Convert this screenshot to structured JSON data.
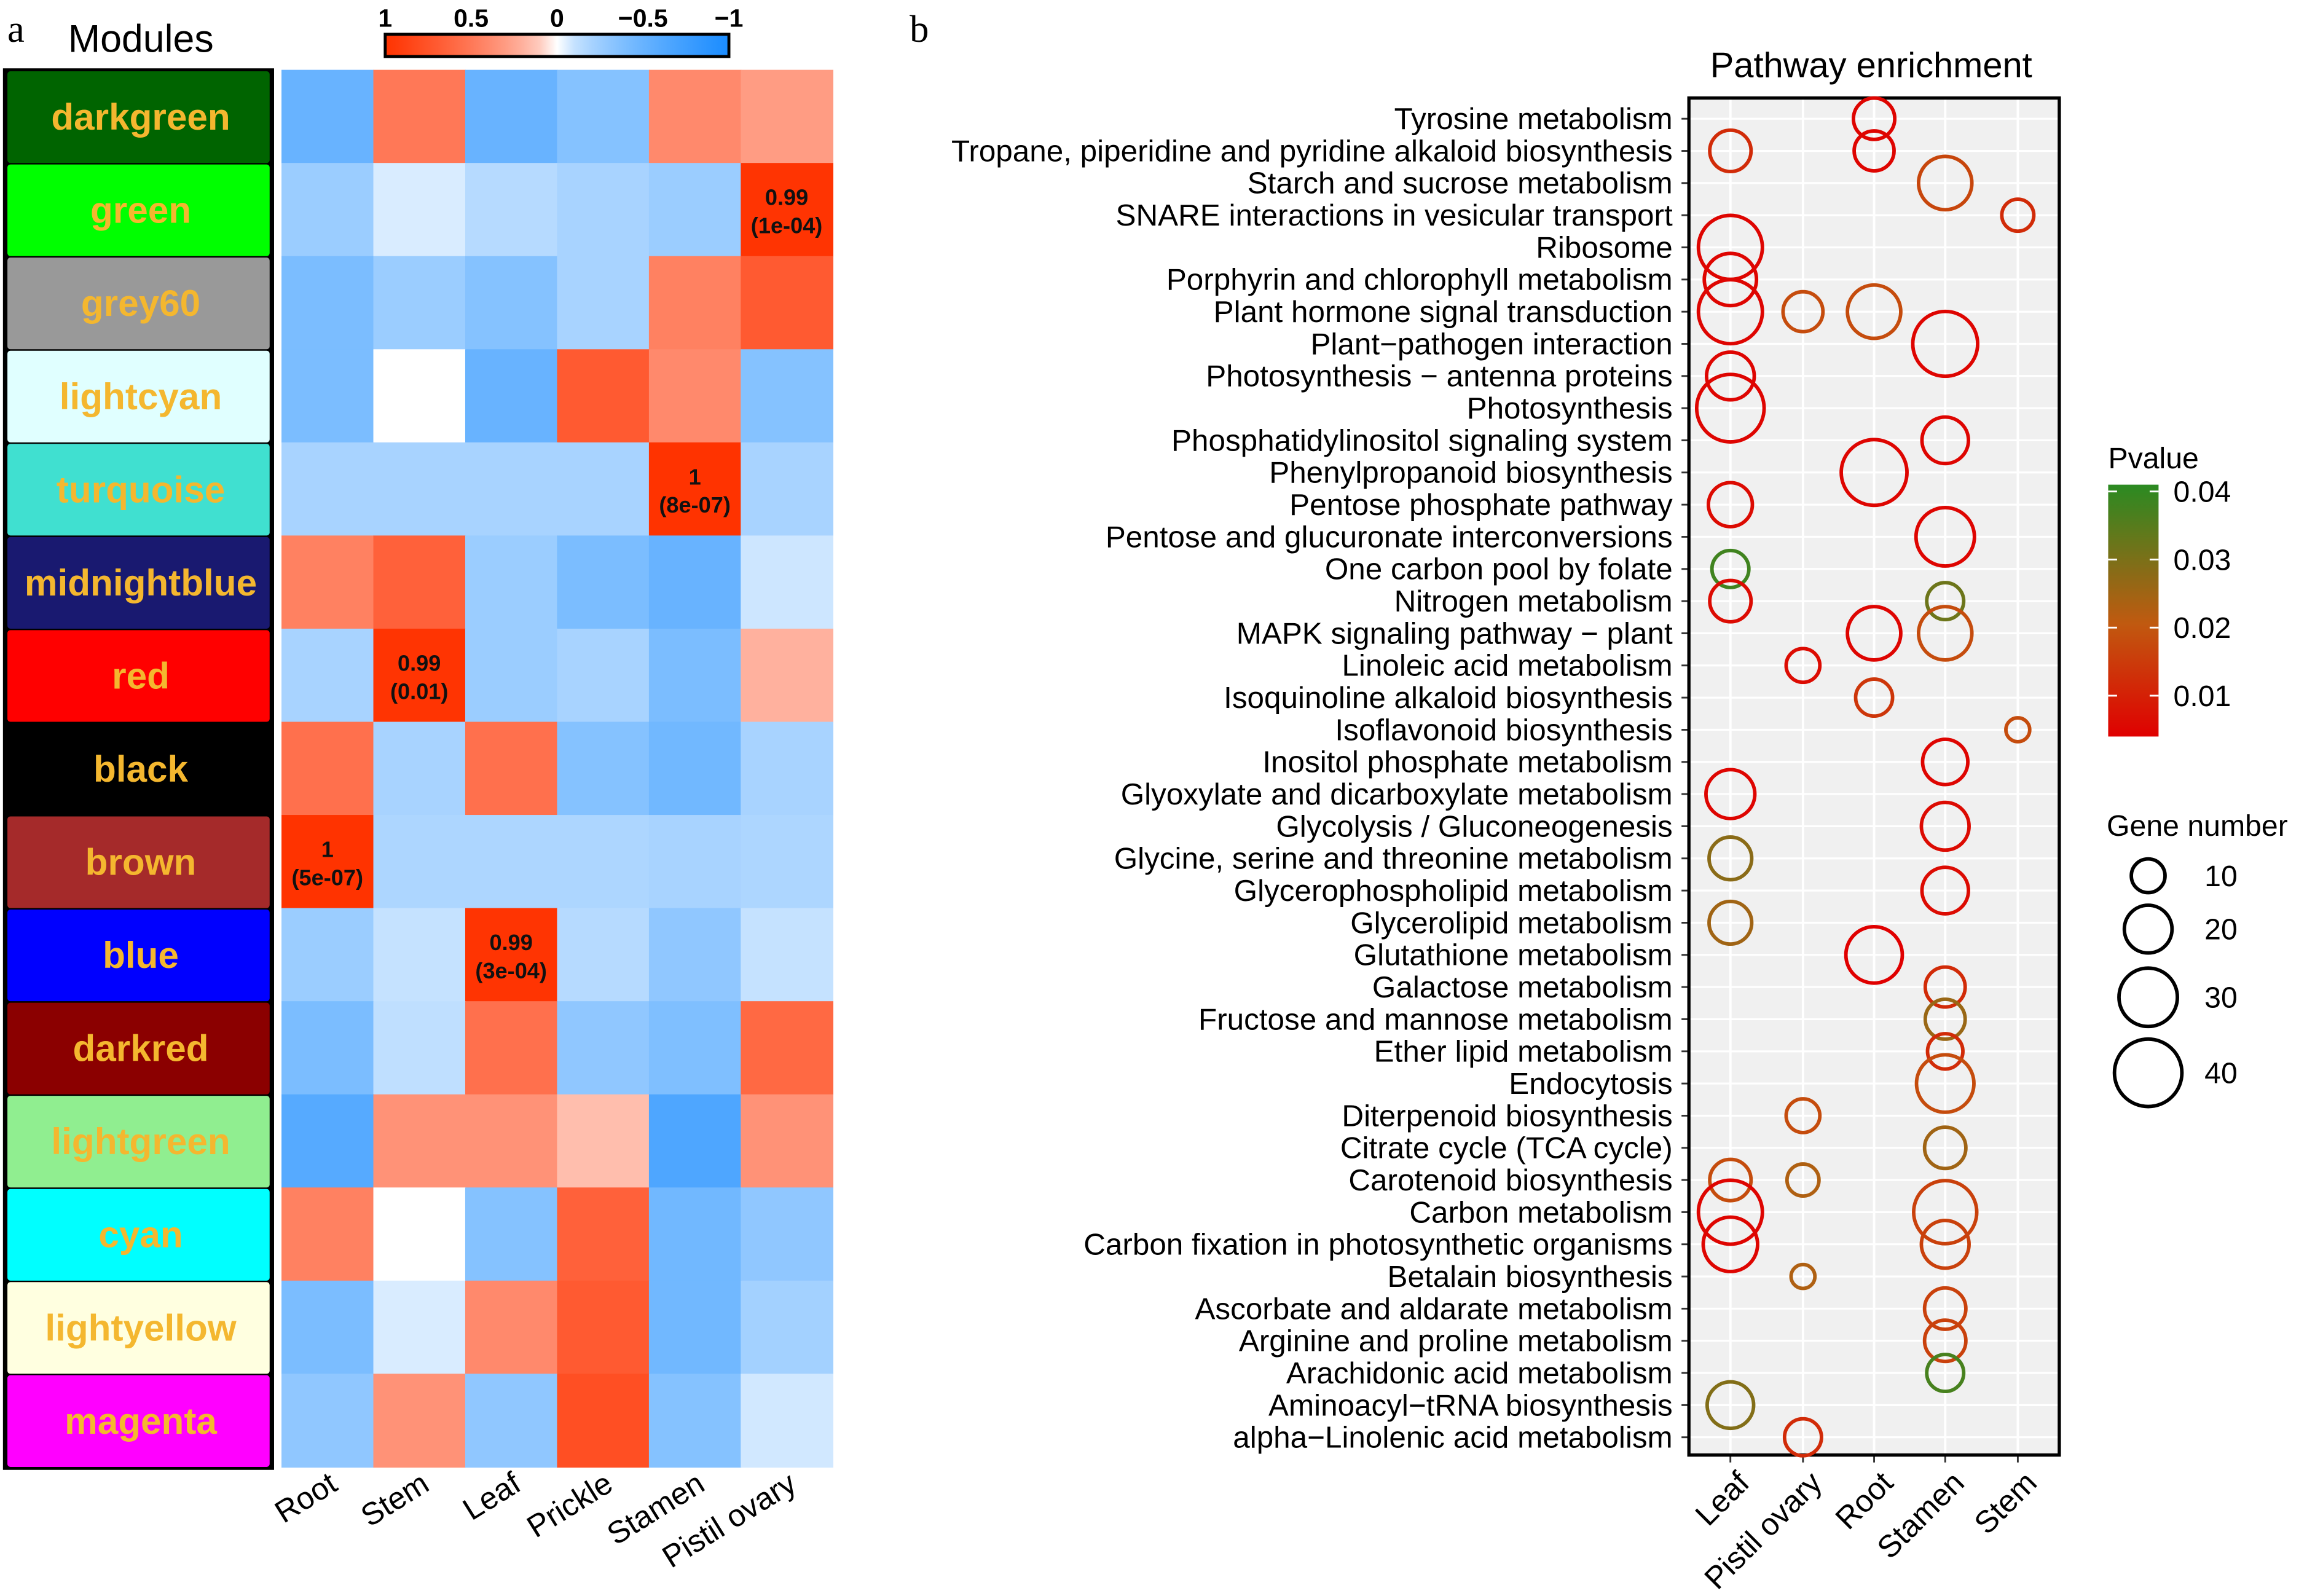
{
  "panel_a_label": "a",
  "panel_b_label": "b",
  "chart_data": [
    {
      "type": "heatmap",
      "row_header": "Modules",
      "rows": [
        "darkgreen",
        "green",
        "grey60",
        "lightcyan",
        "turquoise",
        "midnightblue",
        "red",
        "black",
        "brown",
        "blue",
        "darkred",
        "lightgreen",
        "cyan",
        "lightyellow",
        "magenta"
      ],
      "row_colors": [
        "#006400",
        "#00ff00",
        "#999999",
        "#e0ffff",
        "#40e0d0",
        "#191970",
        "#ff0000",
        "#000000",
        "#a52a2a",
        "#0000ff",
        "#8b0000",
        "#90ee90",
        "#00ffff",
        "#ffffe0",
        "#ff00ff"
      ],
      "columns": [
        "Root",
        "Stem",
        "Leaf",
        "Prickle",
        "Stamen",
        "Pistil ovary"
      ],
      "values": [
        [
          -0.5,
          0.5,
          -0.5,
          -0.35,
          0.4,
          0.3
        ],
        [
          -0.25,
          -0.05,
          -0.15,
          -0.2,
          -0.25,
          0.99
        ],
        [
          -0.4,
          -0.25,
          -0.35,
          -0.2,
          0.45,
          0.7
        ],
        [
          -0.4,
          0,
          -0.5,
          0.7,
          0.4,
          -0.35
        ],
        [
          -0.2,
          -0.2,
          -0.2,
          -0.2,
          1,
          -0.2
        ],
        [
          0.45,
          0.65,
          -0.25,
          -0.4,
          -0.5,
          -0.08
        ],
        [
          -0.2,
          0.99,
          -0.25,
          -0.2,
          -0.4,
          0.2
        ],
        [
          0.55,
          -0.2,
          0.55,
          -0.35,
          -0.45,
          -0.2
        ],
        [
          1,
          -0.18,
          -0.18,
          -0.18,
          -0.2,
          -0.18
        ],
        [
          -0.25,
          -0.1,
          0.99,
          -0.15,
          -0.3,
          -0.1
        ],
        [
          -0.4,
          -0.12,
          0.55,
          -0.3,
          -0.38,
          0.6
        ],
        [
          -0.6,
          0.35,
          0.35,
          0.15,
          -0.65,
          0.35
        ],
        [
          0.45,
          0,
          -0.35,
          0.65,
          -0.45,
          -0.3
        ],
        [
          -0.4,
          -0.05,
          0.4,
          0.7,
          -0.45,
          -0.22
        ],
        [
          -0.3,
          0.35,
          -0.3,
          0.78,
          -0.35,
          -0.07
        ]
      ],
      "annotations": [
        {
          "row": "green",
          "column": "Pistil ovary",
          "line1": "0.99",
          "line2": "(1e-04)"
        },
        {
          "row": "turquoise",
          "column": "Stamen",
          "line1": "1",
          "line2": "(8e-07)"
        },
        {
          "row": "red",
          "column": "Stem",
          "line1": "0.99",
          "line2": "(0.01)"
        },
        {
          "row": "brown",
          "column": "Root",
          "line1": "1",
          "line2": "(5e-07)"
        },
        {
          "row": "blue",
          "column": "Leaf",
          "line1": "0.99",
          "line2": "(3e-04)"
        }
      ],
      "colorbar": {
        "ticks": [
          "1",
          "0.5",
          "0",
          "−0.5",
          "−1"
        ],
        "range": [
          1,
          -1
        ],
        "positive_color": "#ff3300",
        "negative_color": "#1a8cff",
        "mid_color": "#ffffff"
      }
    },
    {
      "type": "scatter",
      "title": "Pathway enrichment",
      "x_categories": [
        "Leaf",
        "Pistil ovary",
        "Root",
        "Stamen",
        "Stem"
      ],
      "y_categories": [
        "Tyrosine metabolism",
        "Tropane, piperidine and pyridine alkaloid biosynthesis",
        "Starch and sucrose metabolism",
        "SNARE interactions in vesicular transport",
        "Ribosome",
        "Porphyrin and chlorophyll metabolism",
        "Plant hormone signal transduction",
        "Plant−pathogen interaction",
        "Photosynthesis − antenna proteins",
        "Photosynthesis",
        "Phosphatidylinositol signaling system",
        "Phenylpropanoid biosynthesis",
        "Pentose phosphate pathway",
        "Pentose and glucuronate interconversions",
        "One carbon pool by folate",
        "Nitrogen metabolism",
        "MAPK signaling pathway − plant",
        "Linoleic acid metabolism",
        "Isoquinoline alkaloid biosynthesis",
        "Isoflavonoid biosynthesis",
        "Inositol phosphate metabolism",
        "Glyoxylate and dicarboxylate metabolism",
        "Glycolysis / Gluconeogenesis",
        "Glycine, serine and threonine metabolism",
        "Glycerophospholipid metabolism",
        "Glycerolipid metabolism",
        "Glutathione metabolism",
        "Galactose metabolism",
        "Fructose and mannose metabolism",
        "Ether lipid metabolism",
        "Endocytosis",
        "Diterpenoid biosynthesis",
        "Citrate cycle (TCA cycle)",
        "Carotenoid biosynthesis",
        "Carbon metabolism",
        "Carbon fixation in photosynthetic organisms",
        "Betalain biosynthesis",
        "Ascorbate and aldarate metabolism",
        "Arginine and proline metabolism",
        "Arachidonic acid metabolism",
        "Aminoacyl−tRNA biosynthesis",
        "alpha−Linolenic acid metabolism"
      ],
      "points": [
        {
          "pathway": 0,
          "tissue": "Root",
          "gene_number": 15,
          "pvalue": 0.005
        },
        {
          "pathway": 1,
          "tissue": "Leaf",
          "gene_number": 15,
          "pvalue": 0.012
        },
        {
          "pathway": 1,
          "tissue": "Root",
          "gene_number": 14,
          "pvalue": 0.005
        },
        {
          "pathway": 2,
          "tissue": "Stamen",
          "gene_number": 25,
          "pvalue": 0.017
        },
        {
          "pathway": 3,
          "tissue": "Stem",
          "gene_number": 9,
          "pvalue": 0.012
        },
        {
          "pathway": 4,
          "tissue": "Leaf",
          "gene_number": 36,
          "pvalue": 0.005
        },
        {
          "pathway": 5,
          "tissue": "Leaf",
          "gene_number": 24,
          "pvalue": 0.005
        },
        {
          "pathway": 6,
          "tissue": "Leaf",
          "gene_number": 36,
          "pvalue": 0.005
        },
        {
          "pathway": 6,
          "tissue": "Pistil ovary",
          "gene_number": 14,
          "pvalue": 0.018
        },
        {
          "pathway": 6,
          "tissue": "Root",
          "gene_number": 25,
          "pvalue": 0.018
        },
        {
          "pathway": 7,
          "tissue": "Stamen",
          "gene_number": 37,
          "pvalue": 0.005
        },
        {
          "pathway": 8,
          "tissue": "Leaf",
          "gene_number": 20,
          "pvalue": 0.005
        },
        {
          "pathway": 9,
          "tissue": "Leaf",
          "gene_number": 40,
          "pvalue": 0.005
        },
        {
          "pathway": 10,
          "tissue": "Stamen",
          "gene_number": 19,
          "pvalue": 0.005
        },
        {
          "pathway": 11,
          "tissue": "Root",
          "gene_number": 38,
          "pvalue": 0.005
        },
        {
          "pathway": 12,
          "tissue": "Leaf",
          "gene_number": 17,
          "pvalue": 0.006
        },
        {
          "pathway": 13,
          "tissue": "Stamen",
          "gene_number": 30,
          "pvalue": 0.005
        },
        {
          "pathway": 14,
          "tissue": "Leaf",
          "gene_number": 12,
          "pvalue": 0.038
        },
        {
          "pathway": 15,
          "tissue": "Leaf",
          "gene_number": 15,
          "pvalue": 0.006
        },
        {
          "pathway": 15,
          "tissue": "Stamen",
          "gene_number": 12,
          "pvalue": 0.032
        },
        {
          "pathway": 16,
          "tissue": "Root",
          "gene_number": 25,
          "pvalue": 0.005
        },
        {
          "pathway": 16,
          "tissue": "Stamen",
          "gene_number": 25,
          "pvalue": 0.018
        },
        {
          "pathway": 17,
          "tissue": "Pistil ovary",
          "gene_number": 10,
          "pvalue": 0.006
        },
        {
          "pathway": 18,
          "tissue": "Root",
          "gene_number": 12,
          "pvalue": 0.014
        },
        {
          "pathway": 19,
          "tissue": "Stem",
          "gene_number": 5,
          "pvalue": 0.018
        },
        {
          "pathway": 20,
          "tissue": "Stamen",
          "gene_number": 18,
          "pvalue": 0.005
        },
        {
          "pathway": 21,
          "tissue": "Leaf",
          "gene_number": 21,
          "pvalue": 0.005
        },
        {
          "pathway": 22,
          "tissue": "Stamen",
          "gene_number": 20,
          "pvalue": 0.006
        },
        {
          "pathway": 23,
          "tissue": "Leaf",
          "gene_number": 16,
          "pvalue": 0.028
        },
        {
          "pathway": 24,
          "tissue": "Stamen",
          "gene_number": 19,
          "pvalue": 0.006
        },
        {
          "pathway": 25,
          "tissue": "Leaf",
          "gene_number": 16,
          "pvalue": 0.025
        },
        {
          "pathway": 26,
          "tissue": "Root",
          "gene_number": 28,
          "pvalue": 0.004
        },
        {
          "pathway": 27,
          "tissue": "Stamen",
          "gene_number": 14,
          "pvalue": 0.012
        },
        {
          "pathway": 28,
          "tissue": "Stamen",
          "gene_number": 14,
          "pvalue": 0.026
        },
        {
          "pathway": 29,
          "tissue": "Stamen",
          "gene_number": 11,
          "pvalue": 0.012
        },
        {
          "pathway": 30,
          "tissue": "Stamen",
          "gene_number": 29,
          "pvalue": 0.018
        },
        {
          "pathway": 31,
          "tissue": "Pistil ovary",
          "gene_number": 10,
          "pvalue": 0.018
        },
        {
          "pathway": 32,
          "tissue": "Stamen",
          "gene_number": 15,
          "pvalue": 0.025
        },
        {
          "pathway": 33,
          "tissue": "Leaf",
          "gene_number": 15,
          "pvalue": 0.018
        },
        {
          "pathway": 33,
          "tissue": "Pistil ovary",
          "gene_number": 9,
          "pvalue": 0.023
        },
        {
          "pathway": 34,
          "tissue": "Leaf",
          "gene_number": 36,
          "pvalue": 0.005
        },
        {
          "pathway": 34,
          "tissue": "Stamen",
          "gene_number": 35,
          "pvalue": 0.016
        },
        {
          "pathway": 35,
          "tissue": "Leaf",
          "gene_number": 26,
          "pvalue": 0.005
        },
        {
          "pathway": 35,
          "tissue": "Stamen",
          "gene_number": 20,
          "pvalue": 0.016
        },
        {
          "pathway": 36,
          "tissue": "Pistil ovary",
          "gene_number": 5,
          "pvalue": 0.023
        },
        {
          "pathway": 37,
          "tissue": "Stamen",
          "gene_number": 15,
          "pvalue": 0.016
        },
        {
          "pathway": 38,
          "tissue": "Stamen",
          "gene_number": 15,
          "pvalue": 0.016
        },
        {
          "pathway": 39,
          "tissue": "Stamen",
          "gene_number": 12,
          "pvalue": 0.037
        },
        {
          "pathway": 40,
          "tissue": "Leaf",
          "gene_number": 19,
          "pvalue": 0.029
        },
        {
          "pathway": 41,
          "tissue": "Pistil ovary",
          "gene_number": 12,
          "pvalue": 0.012
        }
      ],
      "legend_pvalue": {
        "title": "Pvalue",
        "ticks": [
          "0.04",
          "0.03",
          "0.02",
          "0.01"
        ],
        "tick_values": [
          0.04,
          0.03,
          0.02,
          0.01
        ],
        "range": [
          0.004,
          0.041
        ],
        "high_color": "#2a8a22",
        "mid_color": "#c05a10",
        "low_color": "#e00000"
      },
      "legend_size": {
        "title": "Gene number",
        "values": [
          10,
          20,
          30,
          40
        ],
        "labels": [
          "10",
          "20",
          "30",
          "40"
        ]
      },
      "grid": true,
      "background": "#f0f0f0"
    }
  ]
}
